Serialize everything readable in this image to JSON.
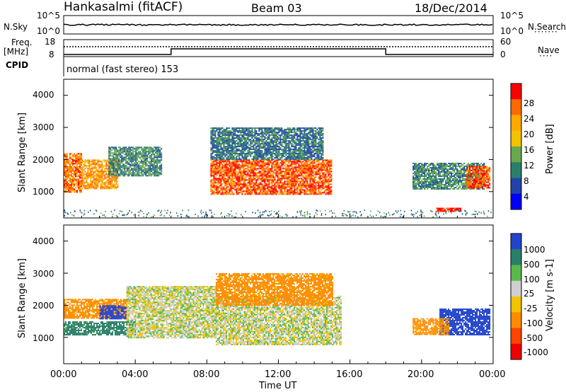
{
  "header": {
    "station": "Hankasalmi (fitACF)",
    "beam": "Beam 03",
    "date": "18/Dec/2014"
  },
  "strips": {
    "nsky_label": "N.Sky",
    "nsearch_label": "N.Search",
    "freq_label_1": "Freq.",
    "freq_label_2": "[MHz]",
    "nave_label": "Nave",
    "cpid_label": "CPID",
    "cpid_text": "normal (fast stereo) 153",
    "noise_ticks_left": [
      "10^5",
      "10^0"
    ],
    "noise_ticks_right": [
      "10^5",
      "10^0"
    ],
    "freq_ticks": [
      "18",
      "8"
    ],
    "nave_ticks": [
      "60",
      "0"
    ]
  },
  "axes": {
    "ylabel": "Slant Range [km]",
    "xlabel": "Time UT",
    "yticks": [
      "4000",
      "3000",
      "2000",
      "1000"
    ],
    "xticks": [
      "00:00",
      "04:00",
      "08:00",
      "12:00",
      "16:00",
      "20:00",
      "00:00"
    ]
  },
  "colorbars": {
    "power": {
      "label": "Power [dB]",
      "ticks": [
        "28",
        "24",
        "20",
        "16",
        "12",
        "8",
        "4"
      ],
      "colors": [
        "#ff0000",
        "#ff6a00",
        "#ffaa00",
        "#f3c200",
        "#6aa84f",
        "#2a7f6a",
        "#2244aa",
        "#0000ff"
      ]
    },
    "velocity": {
      "label": "Velocity [m s-1]",
      "ticks": [
        "1000",
        "500",
        "100",
        "25",
        "-25",
        "-100",
        "-500",
        "-1000"
      ],
      "colors": [
        "#2244cc",
        "#2a7f6a",
        "#59b94a",
        "#cfcfcf",
        "#f3c200",
        "#ff8c00",
        "#ff4400",
        "#ee0000"
      ]
    }
  },
  "chart_data": [
    {
      "type": "heatmap",
      "title": "Power",
      "xlabel": "Time UT",
      "ylabel": "Slant Range [km]",
      "xlim_hours": [
        0,
        24
      ],
      "ylim_km": [
        180,
        4500
      ],
      "colorbar_label": "Power [dB]",
      "colorbar_range_db": [
        0,
        30
      ],
      "regions": [
        {
          "t": [
            0.0,
            1.0
          ],
          "r": [
            1000,
            2200
          ],
          "value_db": 24
        },
        {
          "t": [
            1.0,
            3.0
          ],
          "r": [
            1100,
            2000
          ],
          "value_db": 22
        },
        {
          "t": [
            2.5,
            5.5
          ],
          "r": [
            1500,
            2400
          ],
          "value_db": 10
        },
        {
          "t": [
            8.2,
            15.0
          ],
          "r": [
            900,
            2000
          ],
          "value_db": 26
        },
        {
          "t": [
            8.2,
            14.5
          ],
          "r": [
            2000,
            3000
          ],
          "value_db": 8
        },
        {
          "t": [
            19.5,
            23.5
          ],
          "r": [
            1100,
            1900
          ],
          "value_db": 10
        },
        {
          "t": [
            22.5,
            23.8
          ],
          "r": [
            1100,
            1800
          ],
          "value_db": 26
        },
        {
          "t": [
            20.8,
            22.2
          ],
          "r": [
            400,
            500
          ],
          "value_db": 28
        }
      ]
    },
    {
      "type": "heatmap",
      "title": "Velocity",
      "xlabel": "Time UT",
      "ylabel": "Slant Range [km]",
      "xlim_hours": [
        0,
        24
      ],
      "ylim_km": [
        180,
        4500
      ],
      "colorbar_label": "Velocity [m s-1]",
      "colorbar_range_ms": [
        -1000,
        1000
      ],
      "regions": [
        {
          "t": [
            0.0,
            3.5
          ],
          "r": [
            1600,
            2200
          ],
          "value_ms": -150
        },
        {
          "t": [
            0.0,
            4.0
          ],
          "r": [
            1100,
            1500
          ],
          "value_ms": 150
        },
        {
          "t": [
            2.0,
            3.5
          ],
          "r": [
            1600,
            2000
          ],
          "value_ms": 600
        },
        {
          "t": [
            3.5,
            8.5
          ],
          "r": [
            1000,
            2600
          ],
          "value_ms": 0
        },
        {
          "t": [
            8.5,
            15.5
          ],
          "r": [
            800,
            2300
          ],
          "value_ms": 0
        },
        {
          "t": [
            8.5,
            15.0
          ],
          "r": [
            2000,
            3000
          ],
          "value_ms": -150
        },
        {
          "t": [
            21.0,
            23.8
          ],
          "r": [
            1100,
            1900
          ],
          "value_ms": 700
        },
        {
          "t": [
            19.5,
            21.5
          ],
          "r": [
            1100,
            1600
          ],
          "value_ms": -150
        }
      ]
    }
  ]
}
